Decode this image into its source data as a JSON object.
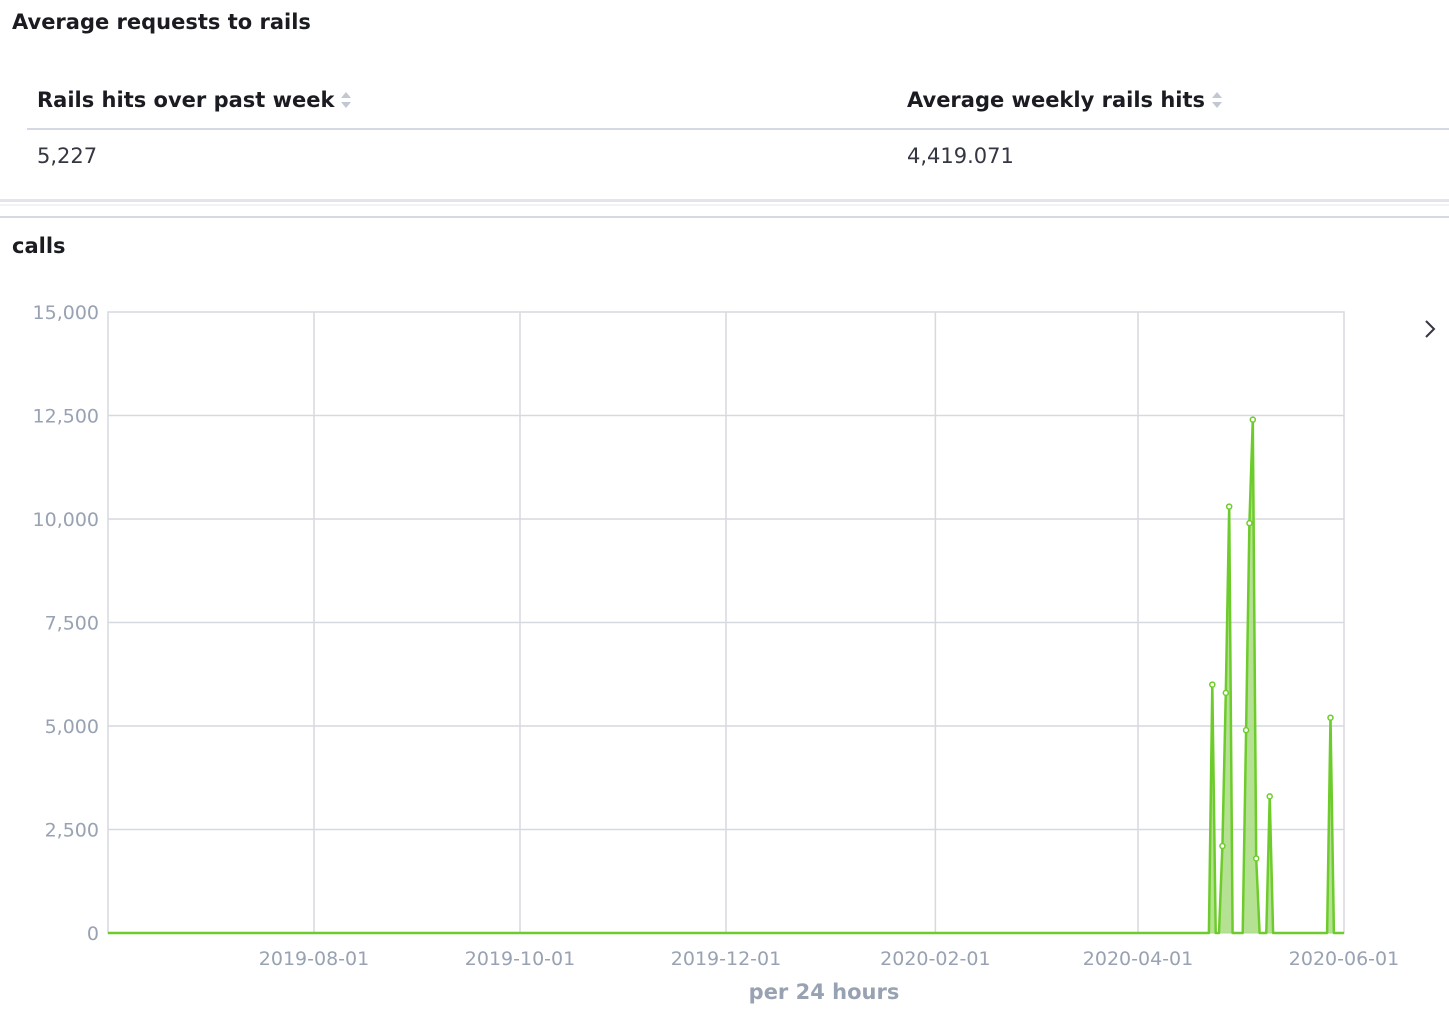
{
  "panels": {
    "metric_panel": {
      "title": "Average requests to rails",
      "columns": [
        {
          "header": "Rails hits over past week",
          "value": "5,227"
        },
        {
          "header": "Average weekly rails hits",
          "value": "4,419.071"
        }
      ]
    },
    "chart_panel": {
      "title": "calls"
    }
  },
  "icons": {
    "sort": "sort-icon",
    "legend_toggle": "chevron-right-icon"
  },
  "colors": {
    "series": "#6dcc2b",
    "series_fill": "#a8dc80",
    "grid": "#d6d9df",
    "axis_text": "#98a2b3"
  },
  "chart_data": {
    "type": "area",
    "title": "calls",
    "xlabel": "per 24 hours",
    "ylabel": "",
    "x_range": [
      "2019-06-01",
      "2020-06-01"
    ],
    "ylim": [
      0,
      15000
    ],
    "y_ticks": [
      0,
      2500,
      5000,
      7500,
      10000,
      12500,
      15000
    ],
    "y_tick_labels": [
      "0",
      "2,500",
      "5,000",
      "7,500",
      "10,000",
      "12,500",
      "15,000"
    ],
    "x_ticks": [
      "2019-08-01",
      "2019-10-01",
      "2019-12-01",
      "2020-02-01",
      "2020-04-01",
      "2020-06-01"
    ],
    "grid": true,
    "legend": "collapsed, right",
    "series": [
      {
        "points": [
          [
            "2019-06-01",
            0
          ],
          [
            "2020-04-22",
            0
          ],
          [
            "2020-04-23",
            6000
          ],
          [
            "2020-04-24",
            0
          ],
          [
            "2020-04-25",
            0
          ],
          [
            "2020-04-26",
            2100
          ],
          [
            "2020-04-27",
            5800
          ],
          [
            "2020-04-28",
            10300
          ],
          [
            "2020-04-29",
            0
          ],
          [
            "2020-05-01",
            0
          ],
          [
            "2020-05-02",
            0
          ],
          [
            "2020-05-03",
            4900
          ],
          [
            "2020-05-04",
            9900
          ],
          [
            "2020-05-05",
            12400
          ],
          [
            "2020-05-06",
            1800
          ],
          [
            "2020-05-07",
            0
          ],
          [
            "2020-05-09",
            0
          ],
          [
            "2020-05-10",
            3300
          ],
          [
            "2020-05-11",
            0
          ],
          [
            "2020-05-27",
            0
          ],
          [
            "2020-05-28",
            5200
          ],
          [
            "2020-05-29",
            0
          ],
          [
            "2020-06-01",
            0
          ]
        ]
      }
    ]
  }
}
